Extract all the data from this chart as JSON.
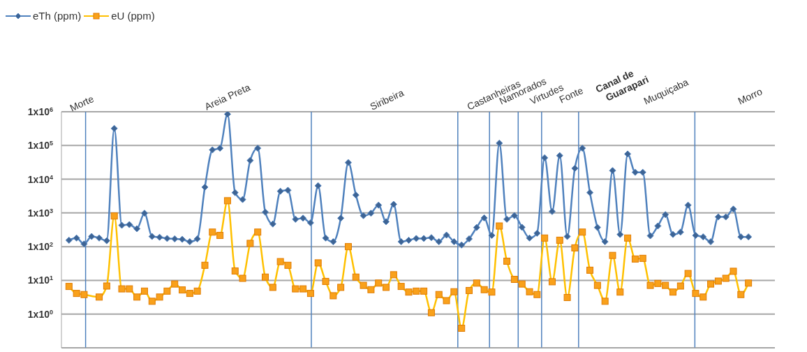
{
  "chart_data": {
    "type": "line",
    "categories": [
      null,
      null,
      null,
      null,
      null,
      null,
      null,
      null,
      null,
      null,
      null,
      null,
      null,
      null,
      null,
      null,
      null,
      null,
      null,
      null,
      null,
      null,
      null,
      null,
      null,
      null,
      null,
      null,
      null,
      null,
      null,
      null,
      null,
      null,
      null,
      null,
      null,
      null,
      null,
      null,
      null,
      null,
      null,
      null,
      null,
      null,
      null,
      null,
      null,
      null,
      null,
      null,
      null,
      null,
      null,
      null,
      null,
      null,
      null,
      null,
      null,
      null,
      null,
      null,
      null,
      null,
      null,
      null,
      null,
      null,
      null,
      null,
      null,
      null,
      null,
      null,
      null,
      null,
      null,
      null,
      null,
      null,
      null,
      null,
      null,
      null,
      null,
      null,
      null,
      null,
      null
    ],
    "series": [
      {
        "name": "eTh (ppm)",
        "color": "#4f81bd",
        "marker": "diamond",
        "values": [
          155,
          180,
          120,
          200,
          180,
          150,
          320000,
          430,
          450,
          340,
          980,
          200,
          190,
          175,
          170,
          165,
          140,
          170,
          5800,
          74000,
          83000,
          850000,
          4000,
          2500,
          36000,
          83000,
          1050,
          470,
          4400,
          4700,
          650,
          700,
          510,
          6400,
          180,
          140,
          700,
          31000,
          3400,
          830,
          980,
          1700,
          550,
          1800,
          140,
          155,
          175,
          175,
          185,
          140,
          220,
          140,
          112,
          170,
          370,
          710,
          215,
          117000,
          650,
          830,
          375,
          180,
          250,
          43000,
          1100,
          50000,
          200,
          21000,
          83000,
          4000,
          370,
          140,
          18000,
          230,
          56000,
          16000,
          16000,
          210,
          410,
          890,
          230,
          270,
          1700,
          215,
          195,
          140,
          760,
          760,
          1300,
          195,
          195
        ]
      },
      {
        "name": "eU (ppm)",
        "color": "#ffc000",
        "marker": "square",
        "values": [
          6.6,
          4.1,
          3.8,
          null,
          3.2,
          6.8,
          810,
          5.6,
          5.6,
          3.2,
          4.8,
          2.4,
          3.2,
          4.8,
          7.8,
          5.2,
          4.1,
          4.8,
          28,
          270,
          215,
          2300,
          19,
          11.5,
          125,
          270,
          12.5,
          6.2,
          36,
          28,
          5.6,
          5.6,
          4.1,
          33,
          9.3,
          3.5,
          6.2,
          100,
          12.5,
          7.1,
          5.3,
          8.3,
          6.2,
          14.7,
          6.6,
          4.5,
          4.8,
          4.8,
          1.1,
          3.8,
          2.5,
          4.6,
          0.38,
          5.0,
          8.3,
          5.3,
          4.5,
          410,
          37,
          10.7,
          7.8,
          4.6,
          3.8,
          180,
          9.1,
          155,
          3.1,
          92,
          270,
          20,
          7.1,
          2.4,
          55,
          4.5,
          180,
          43,
          45,
          7.1,
          8.1,
          7.1,
          4.5,
          6.8,
          16,
          4.1,
          3.2,
          7.8,
          9.5,
          11.5,
          18.6,
          3.8,
          8.3
        ]
      }
    ],
    "log": "y",
    "ylim": [
      0.1,
      1000000
    ],
    "yticks": [
      {
        "value": 0.1,
        "label": null
      },
      {
        "value": 1,
        "label": "1x10$^{0}$"
      },
      {
        "value": 10,
        "label": "1x10$^{1}$"
      },
      {
        "value": 100,
        "label": "1x10$^{2}$"
      },
      {
        "value": 1000,
        "label": "1x10$^{3}$"
      },
      {
        "value": 10000,
        "label": "1x10$^{4}$"
      },
      {
        "value": 100000,
        "label": "1x10$^{5}$"
      },
      {
        "value": 1000000,
        "label": "1x10$^{6}$"
      }
    ],
    "grid": "y",
    "legend": "top left",
    "tick_labels": "y",
    "annotations": [
      "Morte",
      "Areia Preta",
      "Siribeira",
      "Castanheiras",
      "Namorados",
      "Virtudes",
      "Fonte",
      "Canal de Guarapari",
      "Muquiçaba",
      "Morro"
    ]
  }
}
